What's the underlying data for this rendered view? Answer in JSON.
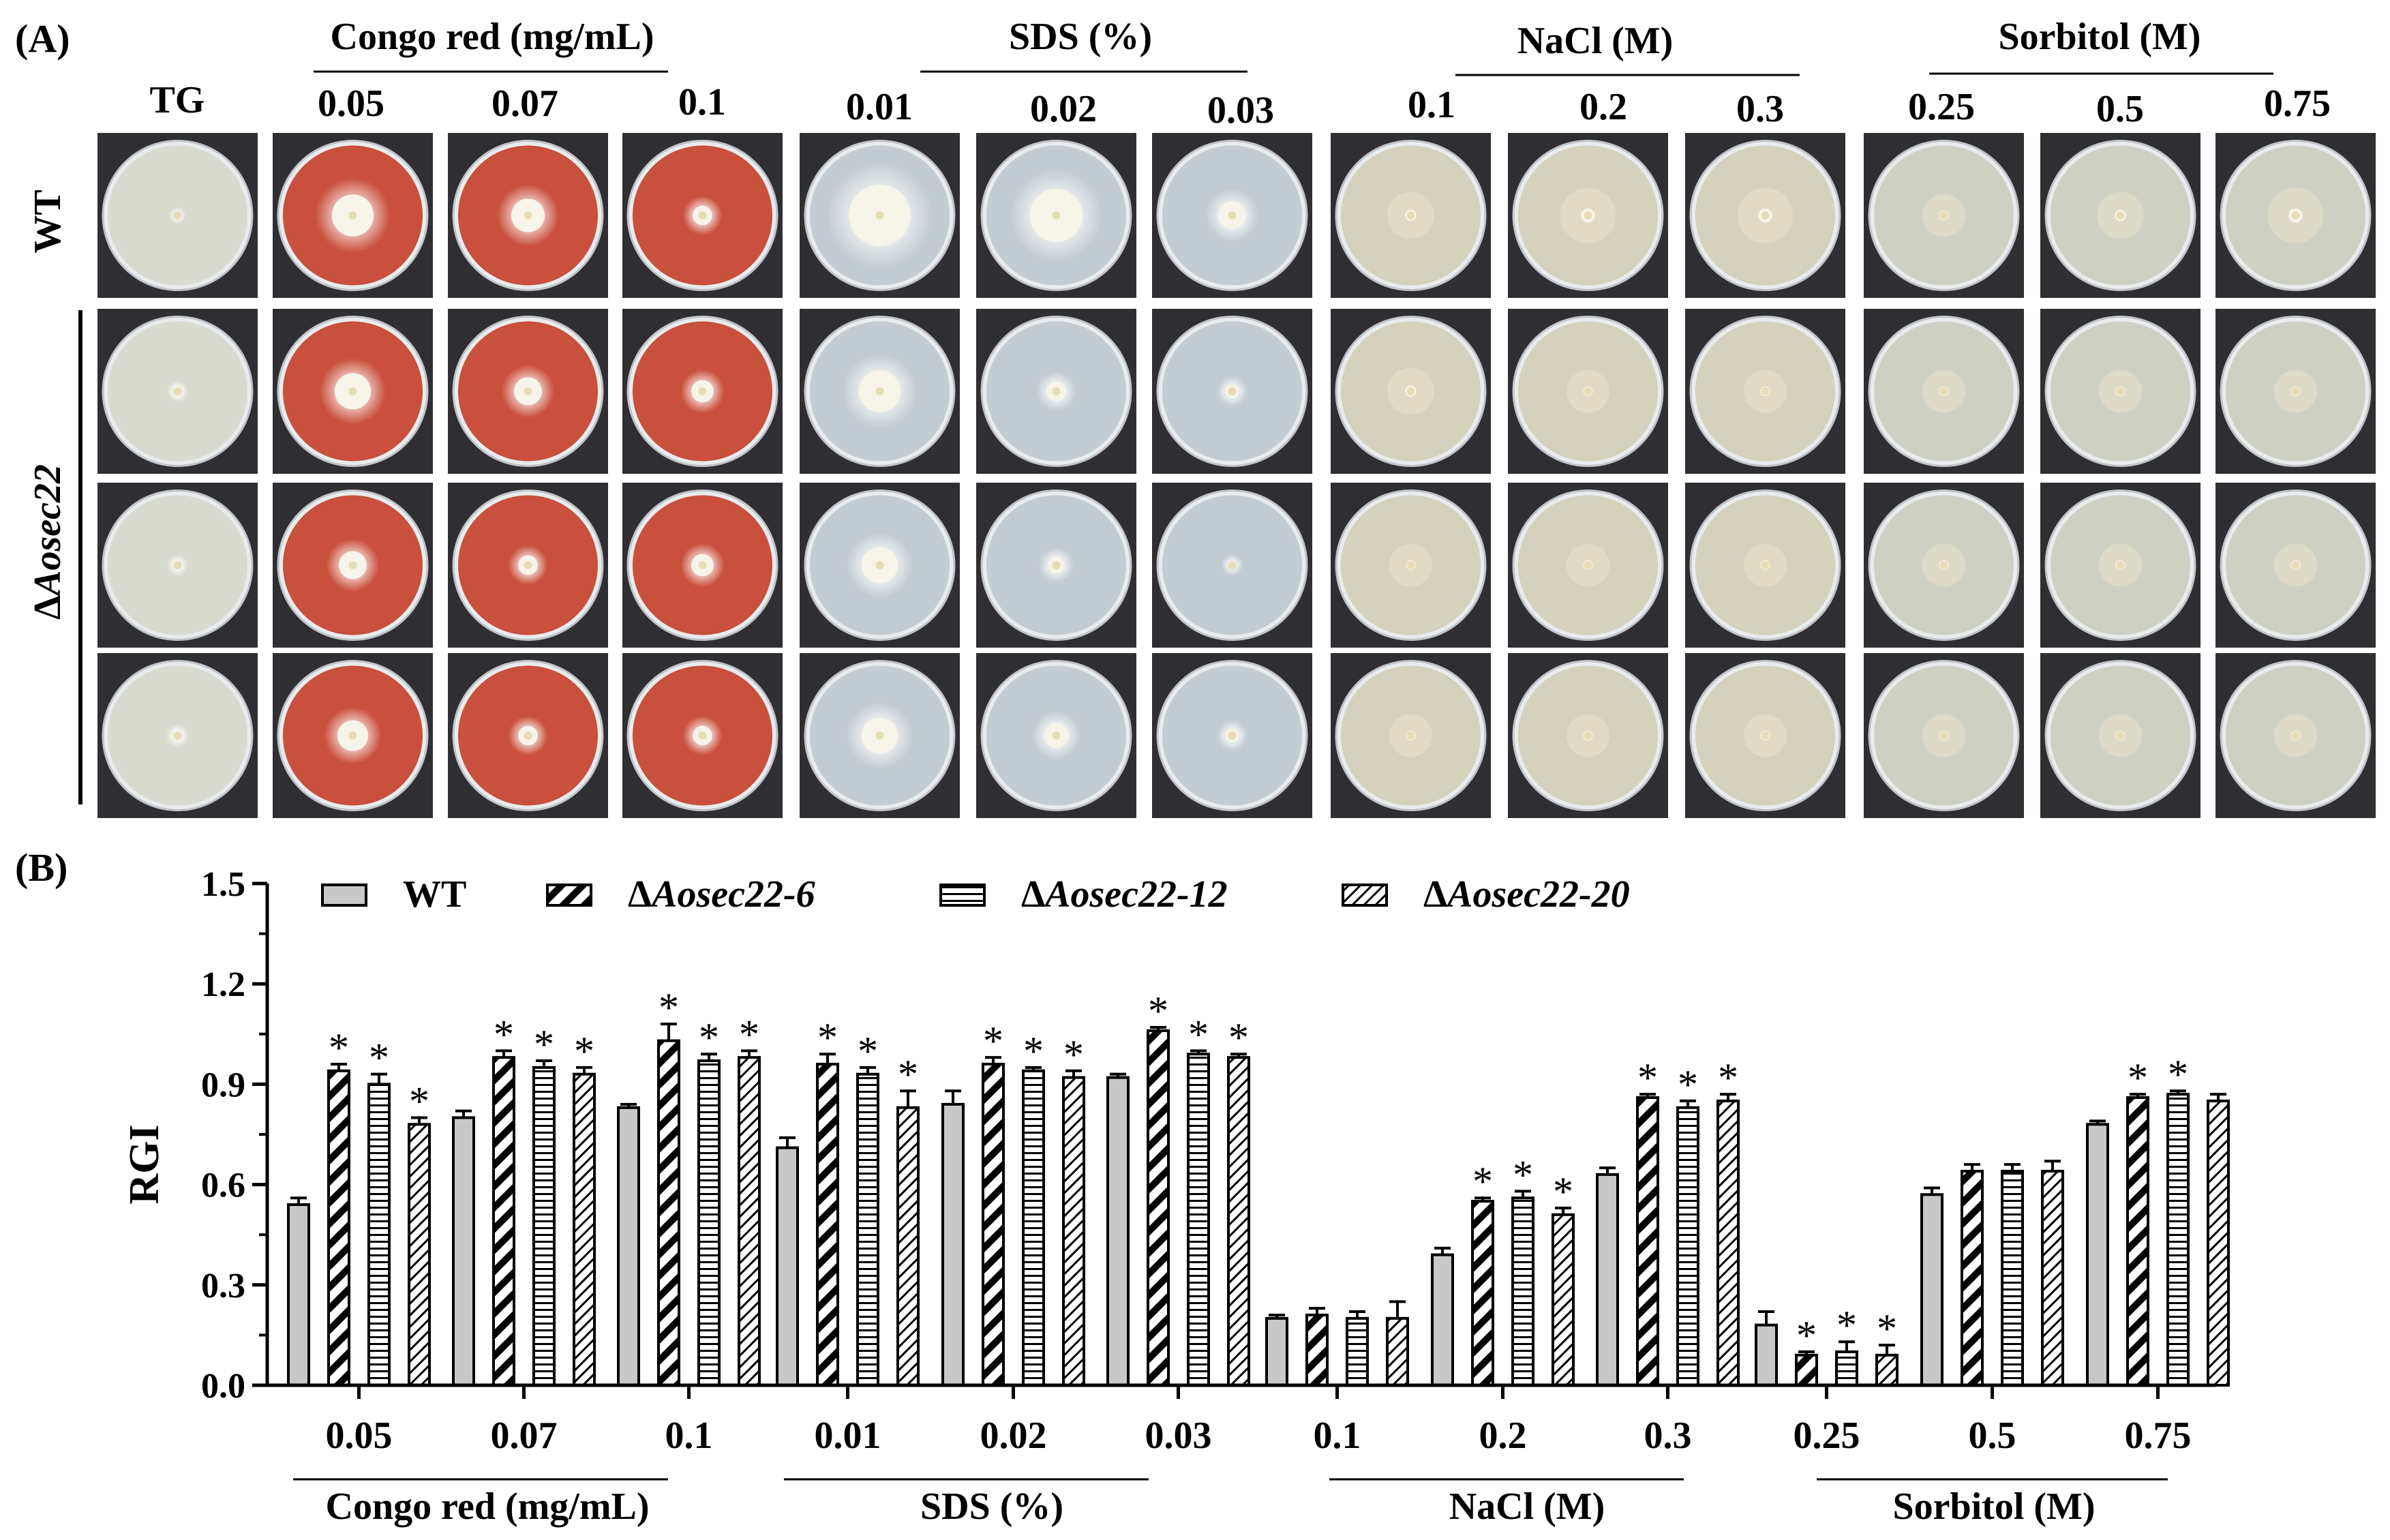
{
  "panel_a": {
    "label": "(A)",
    "group_titles": [
      {
        "label": "Congo red (mg/mL)"
      },
      {
        "label": "SDS (%)"
      },
      {
        "label": "NaCl (M)"
      },
      {
        "label": "Sorbitol (M)"
      }
    ],
    "column_labels": [
      "TG",
      "0.05",
      "0.07",
      "0.1",
      "0.01",
      "0.02",
      "0.03",
      "0.1",
      "0.2",
      "0.3",
      "0.25",
      "0.5",
      "0.75"
    ],
    "column_types": [
      "tg",
      "congo",
      "congo",
      "congo",
      "sds",
      "sds",
      "sds",
      "nacl",
      "nacl",
      "nacl",
      "sorb",
      "sorb",
      "sorb"
    ],
    "row_labels": {
      "wt": "WT",
      "mutant_prefix": "Δ",
      "mutant": "Aosec22"
    },
    "medium_colors": {
      "tg": "#d9dbd0",
      "congo": "#c9503c",
      "sds": "#c3ccd2",
      "nacl": "#d4d1bd",
      "sorb": "#cfd0c4"
    },
    "background_color": "#2e2e33"
  },
  "panel_b": {
    "label": "(B)"
  },
  "chart_data": {
    "type": "bar",
    "ylabel": "RGI",
    "ylim": [
      0,
      1.5
    ],
    "yticks": [
      "0.0",
      "0.3",
      "0.6",
      "0.9",
      "1.2",
      "1.5"
    ],
    "categories": [
      "0.05",
      "0.07",
      "0.1",
      "0.01",
      "0.02",
      "0.03",
      "0.1",
      "0.2",
      "0.3",
      "0.25",
      "0.5",
      "0.75"
    ],
    "category_groups": [
      {
        "label": "Congo red (mg/mL)",
        "from": 0,
        "to": 2
      },
      {
        "label": "SDS (%)",
        "from": 3,
        "to": 5
      },
      {
        "label": "NaCl (M)",
        "from": 6,
        "to": 8
      },
      {
        "label": "Sorbitol (M)",
        "from": 9,
        "to": 11
      }
    ],
    "series": [
      {
        "name": "WT",
        "prefix": "",
        "pattern": "solid",
        "values": [
          0.54,
          0.8,
          0.83,
          0.71,
          0.84,
          0.92,
          0.2,
          0.39,
          0.63,
          0.18,
          0.57,
          0.78
        ],
        "errors": [
          0.02,
          0.02,
          0.01,
          0.03,
          0.04,
          0.01,
          0.01,
          0.02,
          0.02,
          0.04,
          0.02,
          0.01
        ],
        "significant": [
          false,
          false,
          false,
          false,
          false,
          false,
          false,
          false,
          false,
          false,
          false,
          false
        ]
      },
      {
        "name": "Aosec22-6",
        "prefix": "Δ",
        "pattern": "diag-thick",
        "values": [
          0.94,
          0.98,
          1.03,
          0.96,
          0.96,
          1.06,
          0.21,
          0.55,
          0.86,
          0.09,
          0.64,
          0.86
        ],
        "errors": [
          0.02,
          0.02,
          0.05,
          0.03,
          0.02,
          0.01,
          0.02,
          0.01,
          0.01,
          0.01,
          0.02,
          0.01
        ],
        "significant": [
          true,
          true,
          true,
          true,
          true,
          true,
          false,
          true,
          true,
          true,
          false,
          true
        ]
      },
      {
        "name": "Aosec22-12",
        "prefix": "Δ",
        "pattern": "horizontal",
        "values": [
          0.9,
          0.95,
          0.97,
          0.93,
          0.94,
          0.99,
          0.2,
          0.56,
          0.83,
          0.1,
          0.64,
          0.87
        ],
        "errors": [
          0.03,
          0.02,
          0.02,
          0.02,
          0.01,
          0.01,
          0.02,
          0.02,
          0.02,
          0.03,
          0.02,
          0.01
        ],
        "significant": [
          true,
          true,
          true,
          true,
          true,
          true,
          false,
          true,
          true,
          true,
          false,
          true
        ]
      },
      {
        "name": "Aosec22-20",
        "prefix": "Δ",
        "pattern": "diag-thin",
        "values": [
          0.78,
          0.93,
          0.98,
          0.83,
          0.92,
          0.98,
          0.2,
          0.51,
          0.85,
          0.09,
          0.64,
          0.85
        ],
        "errors": [
          0.02,
          0.02,
          0.02,
          0.05,
          0.02,
          0.01,
          0.05,
          0.02,
          0.02,
          0.03,
          0.03,
          0.02
        ],
        "significant": [
          true,
          true,
          true,
          true,
          true,
          true,
          false,
          true,
          true,
          true,
          false,
          false
        ]
      }
    ],
    "significance_marker": "*",
    "legend": "top",
    "grid": false
  }
}
